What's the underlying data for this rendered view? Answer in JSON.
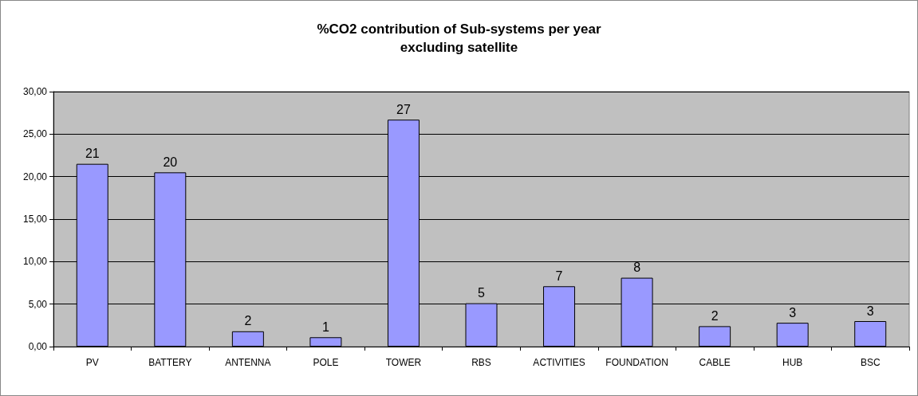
{
  "chart_data": {
    "type": "bar",
    "title": "%CO2 contribution of Sub-systems per year",
    "subtitle": "excluding satellite",
    "categories": [
      "PV",
      "BATTERY",
      "ANTENNA",
      "POLE",
      "TOWER",
      "RBS",
      "ACTIVITIES",
      "FOUNDATION",
      "CABLE",
      "HUB",
      "BSC"
    ],
    "values": [
      21.5,
      20.5,
      1.8,
      1.1,
      26.7,
      5.1,
      7.1,
      8.1,
      2.4,
      2.8,
      3.0
    ],
    "value_labels": [
      "21",
      "20",
      "2",
      "1",
      "27",
      "5",
      "7",
      "8",
      "2",
      "3",
      "3"
    ],
    "color": "#9999ff",
    "ylim": [
      0,
      30
    ],
    "yticks": [
      {
        "value": 0,
        "label": "0,00"
      },
      {
        "value": 5,
        "label": "5,00"
      },
      {
        "value": 10,
        "label": "10,00"
      },
      {
        "value": 15,
        "label": "15,00"
      },
      {
        "value": 20,
        "label": "20,00"
      },
      {
        "value": 25,
        "label": "25,00"
      },
      {
        "value": 30,
        "label": "30,00"
      }
    ],
    "grid": "y"
  }
}
